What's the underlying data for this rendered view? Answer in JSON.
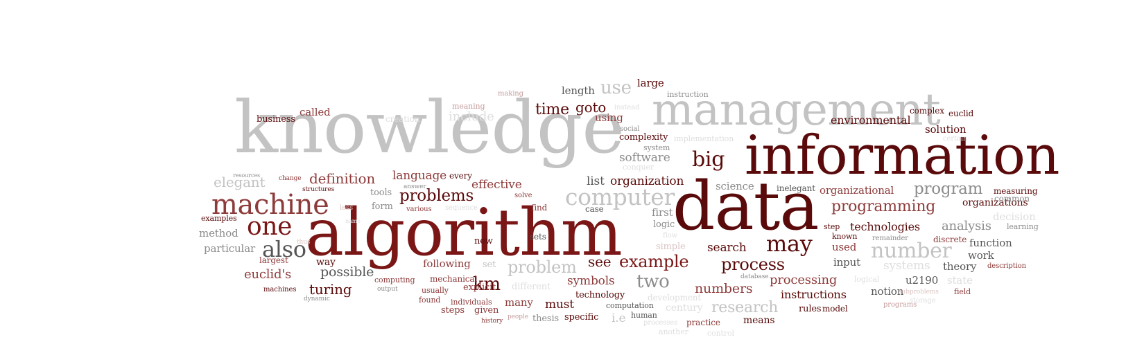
{
  "palette": {
    "dark_red": "#5a0a0a",
    "red": "#7a1616",
    "mid_red": "#8e3b3b",
    "pink": "#c59c9c",
    "light_pink": "#dcc3c3",
    "dark_gray": "#555555",
    "gray": "#8c8c8c",
    "light_gray": "#c3c3c3",
    "very_light_gray": "#dedede"
  },
  "words": [
    {
      "text": "knowledge",
      "color": "light_gray"
    },
    {
      "text": "management",
      "color": "light_gray"
    },
    {
      "text": "information",
      "color": "dark_red"
    },
    {
      "text": "data",
      "color": "dark_red"
    },
    {
      "text": "algorithm",
      "color": "red"
    },
    {
      "text": "machine",
      "color": "mid_red"
    },
    {
      "text": "one",
      "color": "red"
    },
    {
      "text": "also",
      "color": "dark_gray"
    },
    {
      "text": "computer",
      "color": "light_gray"
    },
    {
      "text": "big",
      "color": "dark_red"
    },
    {
      "text": "may",
      "color": "dark_red"
    },
    {
      "text": "process",
      "color": "dark_red"
    },
    {
      "text": "example",
      "color": "red"
    },
    {
      "text": "number",
      "color": "light_gray"
    },
    {
      "text": "program",
      "color": "gray"
    },
    {
      "text": "programming",
      "color": "mid_red"
    },
    {
      "text": "problems",
      "color": "dark_red"
    },
    {
      "text": "problem",
      "color": "light_gray"
    },
    {
      "text": "two",
      "color": "gray"
    },
    {
      "text": "km",
      "color": "dark_red"
    },
    {
      "text": "see",
      "color": "dark_red"
    },
    {
      "text": "time",
      "color": "dark_red"
    },
    {
      "text": "goto",
      "color": "dark_red"
    },
    {
      "text": "use",
      "color": "light_gray"
    },
    {
      "text": "include",
      "color": "very_light_gray"
    },
    {
      "text": "definition",
      "color": "mid_red"
    },
    {
      "text": "elegant",
      "color": "light_gray"
    },
    {
      "text": "language",
      "color": "mid_red"
    },
    {
      "text": "effective",
      "color": "mid_red"
    },
    {
      "text": "list",
      "color": "dark_gray"
    },
    {
      "text": "organization",
      "color": "dark_red"
    },
    {
      "text": "software",
      "color": "gray"
    },
    {
      "text": "environmental",
      "color": "dark_red"
    },
    {
      "text": "solution",
      "color": "dark_red"
    },
    {
      "text": "organizational",
      "color": "mid_red"
    },
    {
      "text": "organizations",
      "color": "dark_red"
    },
    {
      "text": "analysis",
      "color": "gray"
    },
    {
      "text": "technologies",
      "color": "dark_red"
    },
    {
      "text": "decision",
      "color": "very_light_gray"
    },
    {
      "text": "function",
      "color": "dark_gray"
    },
    {
      "text": "work",
      "color": "dark_gray"
    },
    {
      "text": "systems",
      "color": "very_light_gray"
    },
    {
      "text": "theory",
      "color": "dark_gray"
    },
    {
      "text": "state",
      "color": "very_light_gray"
    },
    {
      "text": "u2190",
      "color": "dark_gray"
    },
    {
      "text": "notion",
      "color": "dark_gray"
    },
    {
      "text": "instructions",
      "color": "dark_red"
    },
    {
      "text": "processing",
      "color": "mid_red"
    },
    {
      "text": "research",
      "color": "light_gray"
    },
    {
      "text": "numbers",
      "color": "mid_red"
    },
    {
      "text": "symbols",
      "color": "mid_red"
    },
    {
      "text": "search",
      "color": "dark_red"
    },
    {
      "text": "science",
      "color": "gray"
    },
    {
      "text": "used",
      "color": "mid_red"
    },
    {
      "text": "input",
      "color": "dark_gray"
    },
    {
      "text": "euclid's",
      "color": "mid_red"
    },
    {
      "text": "turing",
      "color": "dark_red"
    },
    {
      "text": "possible",
      "color": "dark_gray"
    },
    {
      "text": "following",
      "color": "mid_red"
    },
    {
      "text": "particular",
      "color": "gray"
    },
    {
      "text": "method",
      "color": "gray"
    },
    {
      "text": "way",
      "color": "dark_red"
    },
    {
      "text": "largest",
      "color": "mid_red"
    },
    {
      "text": "must",
      "color": "dark_red"
    },
    {
      "text": "many",
      "color": "mid_red"
    },
    {
      "text": "steps",
      "color": "mid_red"
    },
    {
      "text": "given",
      "color": "mid_red"
    },
    {
      "text": "specific",
      "color": "dark_red"
    },
    {
      "text": "technology",
      "color": "dark_red"
    },
    {
      "text": "computation",
      "color": "dark_gray"
    },
    {
      "text": "human",
      "color": "dark_gray"
    },
    {
      "text": "thesis",
      "color": "gray"
    },
    {
      "text": "i.e",
      "color": "light_gray"
    },
    {
      "text": "century",
      "color": "very_light_gray"
    },
    {
      "text": "development",
      "color": "very_light_gray"
    },
    {
      "text": "rules",
      "color": "dark_red"
    },
    {
      "text": "model",
      "color": "dark_red"
    },
    {
      "text": "means",
      "color": "dark_red"
    },
    {
      "text": "practice",
      "color": "mid_red"
    },
    {
      "text": "another",
      "color": "very_light_gray"
    },
    {
      "text": "control",
      "color": "very_light_gray"
    },
    {
      "text": "processes",
      "color": "very_light_gray"
    },
    {
      "text": "called",
      "color": "mid_red"
    },
    {
      "text": "business",
      "color": "dark_red"
    },
    {
      "text": "creation",
      "color": "very_light_gray"
    },
    {
      "text": "meaning",
      "color": "pink"
    },
    {
      "text": "making",
      "color": "pink"
    },
    {
      "text": "length",
      "color": "dark_gray"
    },
    {
      "text": "large",
      "color": "dark_red"
    },
    {
      "text": "instruction",
      "color": "gray"
    },
    {
      "text": "instead",
      "color": "very_light_gray"
    },
    {
      "text": "using",
      "color": "mid_red"
    },
    {
      "text": "complexity",
      "color": "dark_red"
    },
    {
      "text": "social",
      "color": "gray"
    },
    {
      "text": "system",
      "color": "gray"
    },
    {
      "text": "implementation",
      "color": "very_light_gray"
    },
    {
      "text": "conquer",
      "color": "very_light_gray"
    },
    {
      "text": "complex",
      "color": "dark_red"
    },
    {
      "text": "euclid",
      "color": "dark_red"
    },
    {
      "text": "certain",
      "color": "very_light_gray"
    },
    {
      "text": "measuring",
      "color": "dark_red"
    },
    {
      "text": "common",
      "color": "gray"
    },
    {
      "text": "learning",
      "color": "gray"
    },
    {
      "text": "known",
      "color": "dark_red"
    },
    {
      "text": "remainder",
      "color": "gray"
    },
    {
      "text": "discrete",
      "color": "mid_red"
    },
    {
      "text": "description",
      "color": "mid_red"
    },
    {
      "text": "logical",
      "color": "very_light_gray"
    },
    {
      "text": "field",
      "color": "mid_red"
    },
    {
      "text": "subproblems",
      "color": "light_pink"
    },
    {
      "text": "storage",
      "color": "very_light_gray"
    },
    {
      "text": "programs",
      "color": "pink"
    },
    {
      "text": "database",
      "color": "gray"
    },
    {
      "text": "inelegant",
      "color": "dark_gray"
    },
    {
      "text": "step",
      "color": "dark_red"
    },
    {
      "text": "first",
      "color": "gray"
    },
    {
      "text": "logic",
      "color": "gray"
    },
    {
      "text": "flow",
      "color": "very_light_gray"
    },
    {
      "text": "simple",
      "color": "light_pink"
    },
    {
      "text": "new",
      "color": "dark_red"
    },
    {
      "text": "sets",
      "color": "dark_gray"
    },
    {
      "text": "case",
      "color": "dark_gray"
    },
    {
      "text": "find",
      "color": "mid_red"
    },
    {
      "text": "solve",
      "color": "mid_red"
    },
    {
      "text": "set",
      "color": "light_gray"
    },
    {
      "text": "different",
      "color": "very_light_gray"
    },
    {
      "text": "mechanical",
      "color": "mid_red"
    },
    {
      "text": "explicit",
      "color": "mid_red"
    },
    {
      "text": "usually",
      "color": "mid_red"
    },
    {
      "text": "found",
      "color": "mid_red"
    },
    {
      "text": "individuals",
      "color": "mid_red"
    },
    {
      "text": "history",
      "color": "mid_red"
    },
    {
      "text": "people",
      "color": "pink"
    },
    {
      "text": "computing",
      "color": "mid_red"
    },
    {
      "text": "output",
      "color": "gray"
    },
    {
      "text": "every",
      "color": "dark_red"
    },
    {
      "text": "answer",
      "color": "gray"
    },
    {
      "text": "sequence",
      "color": "very_light_gray"
    },
    {
      "text": "tools",
      "color": "gray"
    },
    {
      "text": "form",
      "color": "gray"
    },
    {
      "text": "various",
      "color": "mid_red"
    },
    {
      "text": "less",
      "color": "light_pink"
    },
    {
      "text": "change",
      "color": "mid_red"
    },
    {
      "text": "structures",
      "color": "dark_red"
    },
    {
      "text": "examples",
      "color": "dark_red"
    },
    {
      "text": "resources",
      "color": "gray"
    },
    {
      "text": "thus",
      "color": "light_pink"
    },
    {
      "text": "machines",
      "color": "dark_red"
    },
    {
      "text": "dynamic",
      "color": "gray"
    },
    {
      "text": "name",
      "color": "very_light_gray"
    }
  ]
}
